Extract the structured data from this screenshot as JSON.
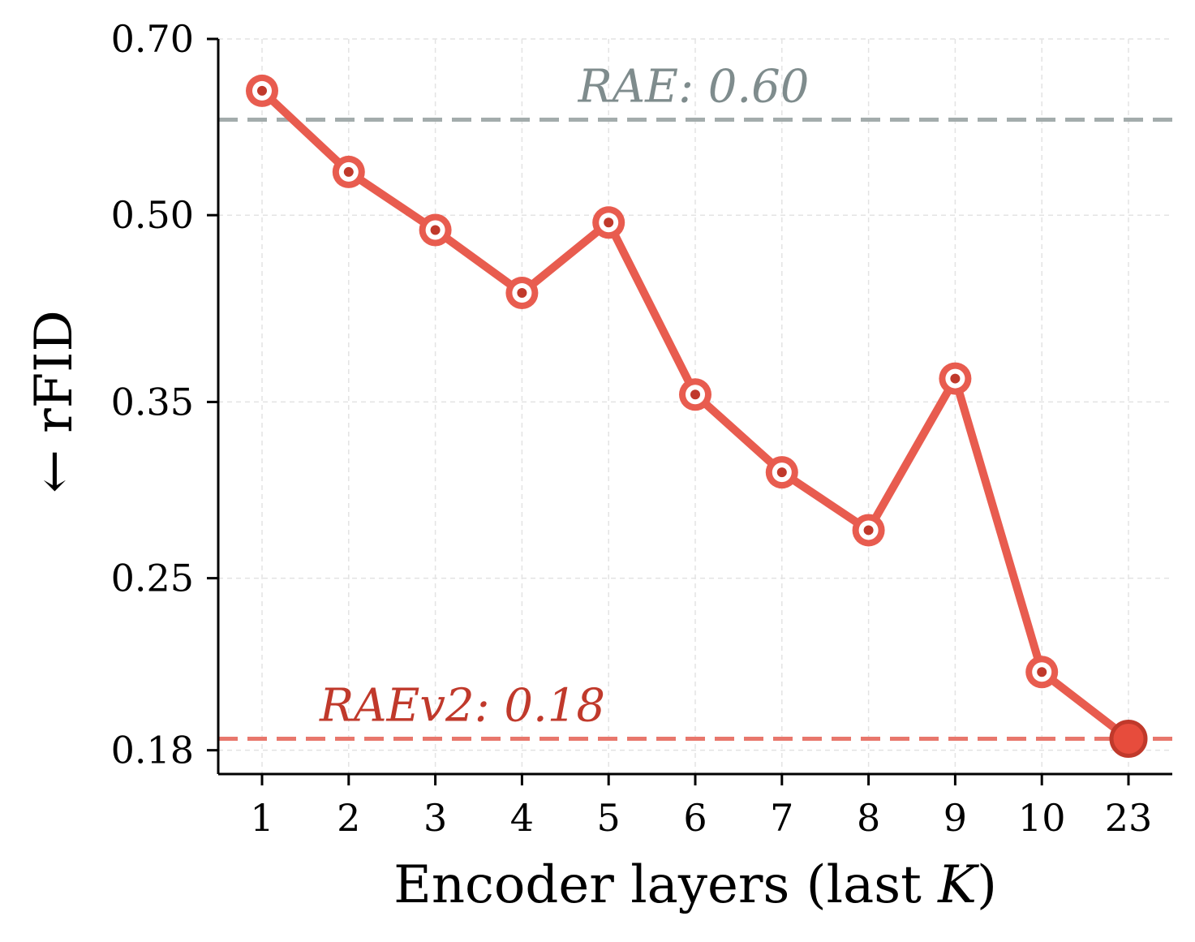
{
  "chart_data": {
    "type": "line",
    "categories": [
      "1",
      "2",
      "3",
      "4",
      "5",
      "6",
      "7",
      "8",
      "9",
      "10",
      "23"
    ],
    "series": [
      {
        "values": [
          0.634,
          0.543,
          0.486,
          0.431,
          0.493,
          0.355,
          0.306,
          0.274,
          0.366,
          0.209,
          0.184
        ],
        "color": "#e85c4f"
      }
    ],
    "xlabel_prefix": "Encoder layers (last ",
    "xlabel_var": "K",
    "xlabel_suffix": ")",
    "ylabel": "← rFID",
    "yticks": [
      "0.70",
      "0.50",
      "0.35",
      "0.25",
      "0.18"
    ],
    "y_scale": "log",
    "ylim": [
      0.172,
      0.7
    ],
    "grid": true,
    "reference_lines": [
      {
        "label": "RAE: 0.60",
        "value": 0.6,
        "color": "#a3acac",
        "text_color": "#7f8c8d"
      },
      {
        "label": "RAEv2: 0.18",
        "value": 0.184,
        "color": "#e8776c",
        "text_color": "#c0392b"
      }
    ],
    "highlight_point": {
      "category": "23",
      "value": 0.184,
      "color": "#e74c3c"
    },
    "marker_center_color": "#c0392b"
  }
}
